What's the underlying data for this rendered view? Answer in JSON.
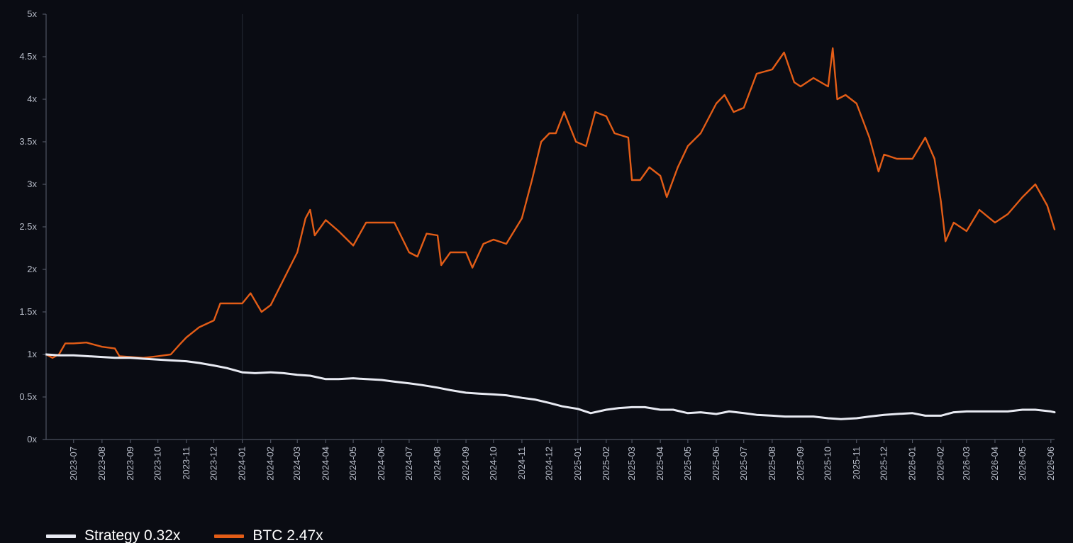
{
  "chart_data": {
    "type": "line",
    "title": "",
    "xlabel": "",
    "ylabel": "",
    "ylim": [
      0,
      5
    ],
    "xlim": [
      "2023-06-01",
      "2026-06-05"
    ],
    "y_ticks": [
      "0x",
      "0.5x",
      "1x",
      "1.5x",
      "2x",
      "2.5x",
      "3x",
      "3.5x",
      "4x",
      "4.5x",
      "5x"
    ],
    "x_ticks": [
      "2023-07",
      "2023-08",
      "2023-09",
      "2023-10",
      "2023-11",
      "2023-12",
      "2024-01",
      "2024-02",
      "2024-03",
      "2024-04",
      "2024-05",
      "2024-06",
      "2024-07",
      "2024-08",
      "2024-09",
      "2024-10",
      "2024-11",
      "2024-12",
      "2025-01",
      "2025-02",
      "2025-03",
      "2025-04",
      "2025-05",
      "2025-06",
      "2025-07",
      "2025-08",
      "2025-09",
      "2025-10",
      "2025-11",
      "2025-12",
      "2026-01",
      "2026-02",
      "2026-03",
      "2026-04",
      "2026-05",
      "2026-06"
    ],
    "vertical_markers": [
      "2024-01-01",
      "2025-01-01"
    ],
    "grid": false,
    "legend_position": "bottom-left",
    "series": [
      {
        "name": "Strategy 0.32x",
        "color": "#e8eaf2",
        "points": [
          [
            "2023-06-01",
            1.0
          ],
          [
            "2023-06-15",
            0.99
          ],
          [
            "2023-07-01",
            0.99
          ],
          [
            "2023-07-15",
            0.98
          ],
          [
            "2023-08-01",
            0.97
          ],
          [
            "2023-08-15",
            0.96
          ],
          [
            "2023-09-01",
            0.96
          ],
          [
            "2023-09-15",
            0.95
          ],
          [
            "2023-10-01",
            0.94
          ],
          [
            "2023-10-15",
            0.93
          ],
          [
            "2023-11-01",
            0.92
          ],
          [
            "2023-11-15",
            0.9
          ],
          [
            "2023-12-01",
            0.87
          ],
          [
            "2023-12-15",
            0.84
          ],
          [
            "2024-01-01",
            0.79
          ],
          [
            "2024-01-15",
            0.78
          ],
          [
            "2024-02-01",
            0.79
          ],
          [
            "2024-02-15",
            0.78
          ],
          [
            "2024-03-01",
            0.76
          ],
          [
            "2024-03-15",
            0.75
          ],
          [
            "2024-04-01",
            0.71
          ],
          [
            "2024-04-15",
            0.71
          ],
          [
            "2024-05-01",
            0.72
          ],
          [
            "2024-05-15",
            0.71
          ],
          [
            "2024-06-01",
            0.7
          ],
          [
            "2024-06-15",
            0.68
          ],
          [
            "2024-07-01",
            0.66
          ],
          [
            "2024-07-15",
            0.64
          ],
          [
            "2024-08-01",
            0.61
          ],
          [
            "2024-08-15",
            0.58
          ],
          [
            "2024-09-01",
            0.55
          ],
          [
            "2024-09-15",
            0.54
          ],
          [
            "2024-10-01",
            0.53
          ],
          [
            "2024-10-15",
            0.52
          ],
          [
            "2024-11-01",
            0.49
          ],
          [
            "2024-11-15",
            0.47
          ],
          [
            "2024-12-01",
            0.43
          ],
          [
            "2024-12-15",
            0.39
          ],
          [
            "2025-01-01",
            0.36
          ],
          [
            "2025-01-15",
            0.31
          ],
          [
            "2025-02-01",
            0.35
          ],
          [
            "2025-02-15",
            0.37
          ],
          [
            "2025-03-01",
            0.38
          ],
          [
            "2025-03-15",
            0.38
          ],
          [
            "2025-04-01",
            0.35
          ],
          [
            "2025-04-15",
            0.35
          ],
          [
            "2025-05-01",
            0.31
          ],
          [
            "2025-05-15",
            0.32
          ],
          [
            "2025-06-01",
            0.3
          ],
          [
            "2025-06-15",
            0.33
          ],
          [
            "2025-07-01",
            0.31
          ],
          [
            "2025-07-15",
            0.29
          ],
          [
            "2025-08-01",
            0.28
          ],
          [
            "2025-08-15",
            0.27
          ],
          [
            "2025-09-01",
            0.27
          ],
          [
            "2025-09-15",
            0.27
          ],
          [
            "2025-10-01",
            0.25
          ],
          [
            "2025-10-15",
            0.24
          ],
          [
            "2025-11-01",
            0.25
          ],
          [
            "2025-11-15",
            0.27
          ],
          [
            "2025-12-01",
            0.29
          ],
          [
            "2025-12-15",
            0.3
          ],
          [
            "2026-01-01",
            0.31
          ],
          [
            "2026-01-15",
            0.28
          ],
          [
            "2026-02-01",
            0.28
          ],
          [
            "2026-02-15",
            0.32
          ],
          [
            "2026-03-01",
            0.33
          ],
          [
            "2026-03-15",
            0.33
          ],
          [
            "2026-04-01",
            0.33
          ],
          [
            "2026-04-15",
            0.33
          ],
          [
            "2026-05-01",
            0.35
          ],
          [
            "2026-05-15",
            0.35
          ],
          [
            "2026-06-01",
            0.33
          ],
          [
            "2026-06-05",
            0.32
          ]
        ]
      },
      {
        "name": "BTC 2.47x",
        "color": "#e35d17",
        "points": [
          [
            "2023-06-01",
            1.0
          ],
          [
            "2023-06-08",
            0.96
          ],
          [
            "2023-06-15",
            1.0
          ],
          [
            "2023-06-22",
            1.13
          ],
          [
            "2023-07-01",
            1.13
          ],
          [
            "2023-07-15",
            1.14
          ],
          [
            "2023-08-01",
            1.09
          ],
          [
            "2023-08-15",
            1.07
          ],
          [
            "2023-08-20",
            0.98
          ],
          [
            "2023-09-01",
            0.97
          ],
          [
            "2023-09-15",
            0.96
          ],
          [
            "2023-10-01",
            0.98
          ],
          [
            "2023-10-15",
            1.0
          ],
          [
            "2023-10-25",
            1.12
          ],
          [
            "2023-11-01",
            1.2
          ],
          [
            "2023-11-15",
            1.32
          ],
          [
            "2023-12-01",
            1.4
          ],
          [
            "2023-12-08",
            1.6
          ],
          [
            "2023-12-20",
            1.6
          ],
          [
            "2024-01-01",
            1.6
          ],
          [
            "2024-01-10",
            1.72
          ],
          [
            "2024-01-22",
            1.5
          ],
          [
            "2024-02-01",
            1.58
          ],
          [
            "2024-02-15",
            1.88
          ],
          [
            "2024-03-01",
            2.2
          ],
          [
            "2024-03-10",
            2.6
          ],
          [
            "2024-03-15",
            2.7
          ],
          [
            "2024-03-20",
            2.4
          ],
          [
            "2024-04-01",
            2.58
          ],
          [
            "2024-04-15",
            2.45
          ],
          [
            "2024-05-01",
            2.28
          ],
          [
            "2024-05-15",
            2.55
          ],
          [
            "2024-06-01",
            2.55
          ],
          [
            "2024-06-15",
            2.55
          ],
          [
            "2024-07-01",
            2.2
          ],
          [
            "2024-07-10",
            2.15
          ],
          [
            "2024-07-20",
            2.42
          ],
          [
            "2024-08-01",
            2.4
          ],
          [
            "2024-08-05",
            2.05
          ],
          [
            "2024-08-15",
            2.2
          ],
          [
            "2024-09-01",
            2.2
          ],
          [
            "2024-09-08",
            2.02
          ],
          [
            "2024-09-20",
            2.3
          ],
          [
            "2024-10-01",
            2.35
          ],
          [
            "2024-10-15",
            2.3
          ],
          [
            "2024-11-01",
            2.6
          ],
          [
            "2024-11-12",
            3.05
          ],
          [
            "2024-11-22",
            3.5
          ],
          [
            "2024-12-01",
            3.6
          ],
          [
            "2024-12-08",
            3.6
          ],
          [
            "2024-12-17",
            3.85
          ],
          [
            "2024-12-30",
            3.5
          ],
          [
            "2025-01-10",
            3.45
          ],
          [
            "2025-01-20",
            3.85
          ],
          [
            "2025-02-01",
            3.8
          ],
          [
            "2025-02-10",
            3.6
          ],
          [
            "2025-02-25",
            3.55
          ],
          [
            "2025-03-01",
            3.05
          ],
          [
            "2025-03-10",
            3.05
          ],
          [
            "2025-03-20",
            3.2
          ],
          [
            "2025-04-01",
            3.1
          ],
          [
            "2025-04-08",
            2.85
          ],
          [
            "2025-04-20",
            3.2
          ],
          [
            "2025-05-01",
            3.45
          ],
          [
            "2025-05-15",
            3.6
          ],
          [
            "2025-06-01",
            3.95
          ],
          [
            "2025-06-10",
            4.05
          ],
          [
            "2025-06-20",
            3.85
          ],
          [
            "2025-07-01",
            3.9
          ],
          [
            "2025-07-15",
            4.3
          ],
          [
            "2025-08-01",
            4.35
          ],
          [
            "2025-08-14",
            4.55
          ],
          [
            "2025-08-25",
            4.2
          ],
          [
            "2025-09-01",
            4.15
          ],
          [
            "2025-09-15",
            4.25
          ],
          [
            "2025-10-01",
            4.15
          ],
          [
            "2025-10-06",
            4.6
          ],
          [
            "2025-10-11",
            4.0
          ],
          [
            "2025-10-20",
            4.05
          ],
          [
            "2025-11-01",
            3.95
          ],
          [
            "2025-11-15",
            3.55
          ],
          [
            "2025-11-25",
            3.15
          ],
          [
            "2025-12-01",
            3.35
          ],
          [
            "2025-12-15",
            3.3
          ],
          [
            "2026-01-01",
            3.3
          ],
          [
            "2026-01-15",
            3.55
          ],
          [
            "2026-01-25",
            3.3
          ],
          [
            "2026-02-01",
            2.8
          ],
          [
            "2026-02-06",
            2.33
          ],
          [
            "2026-02-15",
            2.55
          ],
          [
            "2026-03-01",
            2.45
          ],
          [
            "2026-03-15",
            2.7
          ],
          [
            "2026-04-01",
            2.55
          ],
          [
            "2026-04-15",
            2.65
          ],
          [
            "2026-05-01",
            2.85
          ],
          [
            "2026-05-15",
            3.0
          ],
          [
            "2026-05-28",
            2.75
          ],
          [
            "2026-06-05",
            2.47
          ]
        ]
      }
    ]
  }
}
